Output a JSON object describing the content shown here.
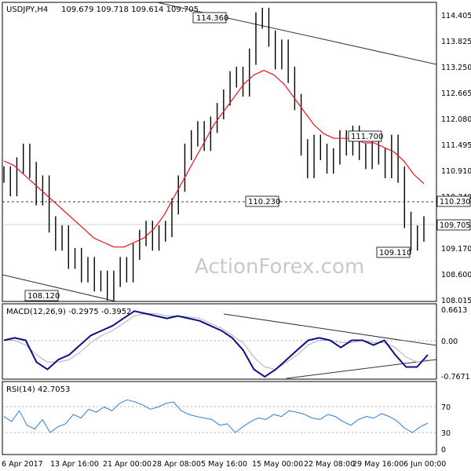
{
  "header": {
    "symbol": "USDJPY,H4",
    "ohlc": "109.679 109.718 109.614 109.705"
  },
  "watermark": "ActionForex.com",
  "colors": {
    "price": "#000000",
    "ma": "#e8141b",
    "macd": "#0c0f8a",
    "signal": "#b0b0b0",
    "rsi": "#2f7fd7",
    "grid": "#c0c0c0",
    "trend": "#333333"
  },
  "chart_data": [
    {
      "type": "line",
      "title": "USDJPY,H4",
      "subtitle": "109.679 109.718 109.614 109.705",
      "ylim": [
        108.0,
        114.6
      ],
      "yticks": [
        "114.405",
        "113.825",
        "113.250",
        "112.665",
        "112.080",
        "111.495",
        "110.910",
        "110.340",
        "109.755",
        "109.170",
        "108.600",
        "108.015"
      ],
      "x_labels": [
        "6 Apr 2017",
        "13 Apr 16:00",
        "21 Apr 00:00",
        "28 Apr 08:00",
        "5 May 16:00",
        "15 May 00:00",
        "22 May 08:00",
        "29 May 16:00",
        "6 Jun 00:00"
      ],
      "last_price": "109.705",
      "reference_level": "110.230",
      "annotations": [
        "114.360",
        "111.700",
        "110.230",
        "109.110",
        "108.120"
      ],
      "series": [
        {
          "values": [
            110.8,
            110.5,
            111.0,
            111.3,
            110.9,
            110.3,
            110.6,
            109.7,
            109.3,
            109.5,
            108.9,
            109.0,
            108.6,
            108.8,
            108.4,
            108.5,
            108.2,
            108.5,
            108.8,
            108.6,
            109.1,
            109.4,
            109.6,
            109.3,
            109.5,
            109.6,
            110.1,
            110.6,
            111.3,
            111.6,
            111.8,
            111.5,
            111.9,
            112.2,
            112.5,
            112.9,
            113.0,
            112.7,
            113.4,
            114.2,
            114.3,
            113.8,
            113.3,
            113.6,
            113.0,
            112.4,
            111.4,
            110.9,
            111.5,
            111.3,
            111.0,
            111.2,
            111.6,
            111.4,
            111.7,
            111.3,
            111.1,
            111.5,
            111.2,
            110.9,
            111.5,
            110.8,
            109.8,
            109.3,
            109.5,
            109.7
          ]
        },
        {
          "values": [
            111.1,
            111.0,
            110.8,
            110.6,
            110.4,
            110.2,
            110.0,
            109.8,
            109.6,
            109.4,
            109.3,
            109.2,
            109.2,
            109.3,
            109.4,
            109.6,
            109.9,
            110.3,
            110.7,
            111.1,
            111.5,
            111.9,
            112.2,
            112.5,
            112.8,
            113.0,
            113.1,
            113.0,
            112.8,
            112.5,
            112.2,
            111.9,
            111.7,
            111.6,
            111.6,
            111.6,
            111.5,
            111.5,
            111.4,
            111.3,
            111.1,
            110.8,
            110.6
          ]
        }
      ]
    },
    {
      "type": "line",
      "title": "MACD(12,26,9) -0.2975 -0.3952",
      "ylim": [
        -0.8,
        0.75
      ],
      "yticks": [
        "0.6613",
        "0.00",
        "-0.7671"
      ],
      "series": [
        {
          "values": [
            0.0,
            0.05,
            0.0,
            -0.45,
            -0.6,
            -0.4,
            -0.3,
            -0.1,
            0.1,
            0.2,
            0.3,
            0.45,
            0.6,
            0.55,
            0.5,
            0.45,
            0.5,
            0.45,
            0.4,
            0.3,
            0.2,
            0.05,
            -0.2,
            -0.6,
            -0.75,
            -0.6,
            -0.4,
            -0.2,
            0.0,
            0.05,
            0.0,
            -0.15,
            0.0,
            0.0,
            -0.1,
            0.0,
            -0.3,
            -0.55,
            -0.55,
            -0.3
          ]
        },
        {
          "values": [
            0.0,
            0.0,
            -0.1,
            -0.3,
            -0.45,
            -0.45,
            -0.4,
            -0.25,
            -0.05,
            0.1,
            0.2,
            0.35,
            0.5,
            0.55,
            0.55,
            0.5,
            0.5,
            0.48,
            0.45,
            0.35,
            0.25,
            0.1,
            -0.05,
            -0.35,
            -0.55,
            -0.6,
            -0.45,
            -0.3,
            -0.1,
            0.0,
            0.0,
            -0.05,
            -0.05,
            0.0,
            -0.05,
            -0.05,
            -0.15,
            -0.35,
            -0.45,
            -0.4
          ]
        }
      ]
    },
    {
      "type": "line",
      "title": "RSI(14) 42.7053",
      "ylim": [
        0,
        100
      ],
      "yticks": [
        "70",
        "30",
        "0"
      ],
      "series": [
        {
          "values": [
            52,
            45,
            60,
            40,
            35,
            48,
            30,
            38,
            42,
            55,
            50,
            62,
            58,
            65,
            60,
            70,
            75,
            72,
            68,
            62,
            65,
            70,
            72,
            60,
            55,
            52,
            50,
            48,
            40,
            42,
            30,
            38,
            45,
            50,
            48,
            55,
            52,
            60,
            58,
            55,
            50,
            48,
            55,
            52,
            45,
            40,
            48,
            52,
            50,
            56,
            52,
            46,
            36,
            30,
            38,
            43
          ]
        }
      ]
    }
  ]
}
